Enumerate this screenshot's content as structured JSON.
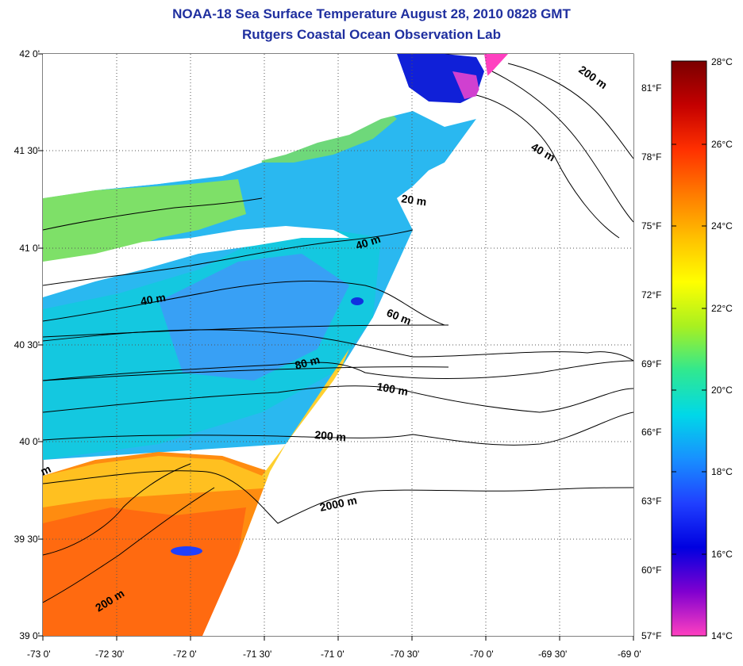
{
  "title": "NOAA-18 Sea Surface Temperature August 28, 2010 0828 GMT",
  "subtitle": "Rutgers Coastal Ocean Observation Lab",
  "lat_labels": [
    "42 0'",
    "41 30'",
    "41 0'",
    "40 30'",
    "40 0'",
    "39 30'",
    "39 0'"
  ],
  "lon_labels": [
    "-73 0'",
    "-72 30'",
    "-72 0'",
    "-71 30'",
    "-71 0'",
    "-70 30'",
    "-70 0'",
    "-69 30'",
    "-69 0'"
  ],
  "fahrenheit_labels": [
    "81°F",
    "78°F",
    "75°F",
    "72°F",
    "69°F",
    "66°F",
    "63°F",
    "60°F",
    "57°F"
  ],
  "colorbar_labels": [
    "28°C",
    "26°C",
    "24°C",
    "22°C",
    "20°C",
    "18°C",
    "16°C",
    "14°C"
  ],
  "contour_labels": [
    "200 m",
    "40 m",
    "20 m",
    "40 m",
    "40 m",
    "60 m",
    "80 m",
    "100 m",
    "200 m",
    "2000 m",
    "200 m",
    "m"
  ],
  "colorbar_colors": [
    "#7a0000",
    "#c40000",
    "#ff3000",
    "#ff7a00",
    "#ffc000",
    "#ffff00",
    "#a8f020",
    "#30e890",
    "#00d8e8",
    "#1890ff",
    "#2040ff",
    "#0000e0",
    "#8000d0",
    "#ff40c0"
  ]
}
